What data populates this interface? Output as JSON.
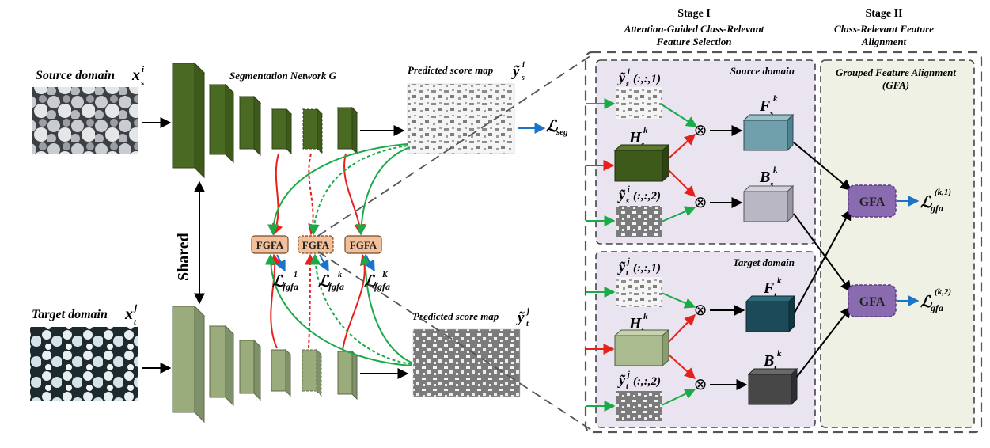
{
  "left": {
    "source_label": "Source domain",
    "source_sym": "x",
    "source_sub": "s",
    "source_sup": "i",
    "target_label": "Target domain",
    "target_sym": "x",
    "target_sub": "t",
    "target_sup": "j",
    "network_label": "Segmentation Network G",
    "shared_label": "Shared",
    "pred_source_label": "Predicted score map",
    "pred_source_sym": "ỹ",
    "pred_source_sub": "s",
    "pred_source_sup": "i",
    "pred_target_label": "Predicted score map",
    "pred_target_sym": "ỹ",
    "pred_target_sub": "t",
    "pred_target_sup": "j",
    "loss_seg": "ℒ",
    "loss_seg_sub": "seg",
    "fgfa_label": "FGFA",
    "fgfa_losses": [
      {
        "sym": "ℒ",
        "sub": "fgfa",
        "sup": "1"
      },
      {
        "sym": "ℒ",
        "sub": "fgfa",
        "sup": "k"
      },
      {
        "sym": "ℒ",
        "sub": "fgfa",
        "sup": "K"
      }
    ]
  },
  "stage1": {
    "title": "Stage I",
    "subtitle_line1": "Attention-Guided Class-Relevant",
    "subtitle_line2": "Feature Selection",
    "source_domain": "Source domain",
    "target_domain": "Target domain",
    "ys1": "ỹ",
    "ys1_sub": "s",
    "ys1_sup": "i",
    "ys1_arg": "(:,:,1)",
    "ys2": "ỹ",
    "ys2_sub": "s",
    "ys2_sup": "i",
    "ys2_arg": "(:,:,2)",
    "yt1": "ỹ",
    "yt1_sub": "t",
    "yt1_sup": "j",
    "yt1_arg": "(:,:,1)",
    "yt2": "ỹ",
    "yt2_sub": "t",
    "yt2_sup": "j",
    "yt2_arg": "(:,:,2)",
    "Hs": "H",
    "Hs_sub": "s",
    "Hs_sup": "k",
    "Ht": "H",
    "Ht_sub": "t",
    "Ht_sup": "k",
    "Fs": "F",
    "Fs_sub": "s",
    "Fs_sup": "k",
    "Bs": "B",
    "Bs_sub": "s",
    "Bs_sup": "k",
    "Ft": "F",
    "Ft_sub": "t",
    "Ft_sup": "k",
    "Bt": "B",
    "Bt_sub": "t",
    "Bt_sup": "k",
    "otimes": "⊗"
  },
  "stage2": {
    "title": "Stage II",
    "subtitle_line1": "Class-Relevant Feature",
    "subtitle_line2": "Alignment",
    "gfa_title_line1": "Grouped Feature Alignment",
    "gfa_title_line2": "(GFA)",
    "gfa_label": "GFA",
    "loss1_sym": "ℒ",
    "loss1_sub": "gfa",
    "loss1_sup": "(k,1)",
    "loss2_sym": "ℒ",
    "loss2_sub": "gfa",
    "loss2_sup": "(k,2)"
  },
  "colors": {
    "dark_green": "#4a6a23",
    "light_green": "#9aab7c",
    "fgfa_fill": "#f2c09a",
    "panel_purple": "#e9e4ef",
    "panel_green": "#eef1e4",
    "gfa_fill": "#8a6bb0",
    "red": "#e8201c",
    "green": "#1aab48",
    "blue": "#1b74c8"
  }
}
